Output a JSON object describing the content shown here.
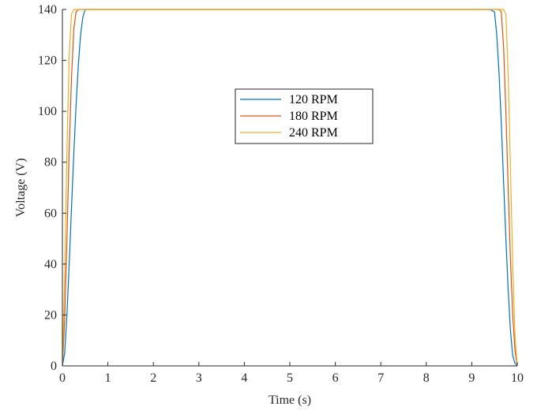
{
  "chart_data": {
    "type": "line",
    "title": "",
    "xlabel": "Time (s)",
    "ylabel": "Voltage (V)",
    "xlim": [
      0,
      10
    ],
    "ylim": [
      0,
      140
    ],
    "xticks": [
      "0",
      "1",
      "2",
      "3",
      "4",
      "5",
      "6",
      "7",
      "8",
      "9",
      "10"
    ],
    "yticks": [
      "0",
      "20",
      "40",
      "60",
      "80",
      "100",
      "120",
      "140"
    ],
    "grid": false,
    "legend_position": "upper-center",
    "series": [
      {
        "name": "120 RPM",
        "color": "#0072BD",
        "x": [
          0,
          0.05,
          0.1,
          0.15,
          0.2,
          0.25,
          0.3,
          0.35,
          0.4,
          0.45,
          0.5,
          9.4,
          9.5,
          9.55,
          9.6,
          9.65,
          9.7,
          9.75,
          9.8,
          9.85,
          9.9,
          9.95,
          10.0
        ],
        "y": [
          0,
          5,
          20,
          40,
          62,
          83,
          102,
          118,
          130,
          137,
          140,
          140,
          139,
          130,
          115,
          95,
          72,
          50,
          30,
          14,
          4,
          1,
          0
        ]
      },
      {
        "name": "180 RPM",
        "color": "#D95319",
        "x": [
          0,
          0.05,
          0.1,
          0.15,
          0.2,
          0.25,
          0.3,
          0.35,
          9.6,
          9.65,
          9.7,
          9.75,
          9.8,
          9.85,
          9.9,
          9.95,
          10.0
        ],
        "y": [
          0,
          18,
          50,
          85,
          113,
          132,
          139,
          140,
          140,
          139,
          125,
          100,
          70,
          42,
          20,
          6,
          0
        ]
      },
      {
        "name": "240 RPM",
        "color": "#EDB120",
        "x": [
          0,
          0.05,
          0.1,
          0.15,
          0.2,
          0.25,
          9.7,
          9.75,
          9.8,
          9.85,
          9.9,
          9.95,
          10.0
        ],
        "y": [
          0,
          35,
          85,
          122,
          138,
          140,
          140,
          138,
          115,
          78,
          40,
          12,
          0
        ]
      }
    ]
  }
}
